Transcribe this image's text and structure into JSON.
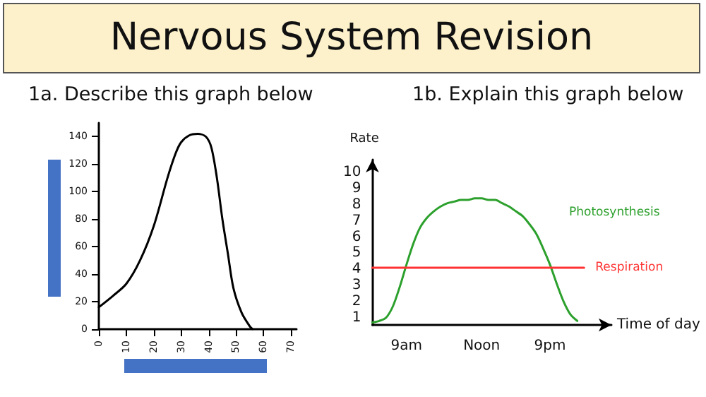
{
  "chart_data": [
    {
      "type": "line",
      "title": "Nervous System Revision",
      "subtitle": "1a. Describe this graph below",
      "x": [
        0,
        5,
        10,
        15,
        20,
        25,
        28,
        30,
        33,
        36,
        39,
        41,
        43,
        45,
        47,
        49,
        52,
        55,
        56
      ],
      "series": [
        {
          "color": "#000000",
          "values": [
            16,
            24,
            33,
            50,
            75,
            110,
            128,
            136,
            141,
            142,
            140,
            132,
            110,
            80,
            55,
            30,
            12,
            2,
            0
          ]
        }
      ],
      "xlim": [
        0,
        72
      ],
      "xticks": [
        0,
        10,
        20,
        30,
        40,
        50,
        60,
        70
      ],
      "ylim": [
        0,
        150
      ],
      "yticks": [
        0,
        20,
        40,
        60,
        80,
        100,
        120,
        140
      ],
      "grid": false,
      "legend": false,
      "marker": "none",
      "line_style": "solid"
    },
    {
      "type": "line",
      "subtitle": "1b. Explain this graph below",
      "xlabel": "Time of day",
      "ylabel": "Rate",
      "series": [
        {
          "name": "Photosynthesis",
          "color": "#2ca02c",
          "values": [
            0.7,
            0.8,
            1.0,
            1.7,
            2.9,
            4.3,
            5.6,
            6.6,
            7.2,
            7.6,
            7.9,
            8.1,
            8.2,
            8.3,
            8.3,
            8.4,
            8.4,
            8.3,
            8.3,
            8.1,
            7.9,
            7.6,
            7.3,
            6.8,
            6.2,
            5.3,
            4.3,
            3.1,
            2.0,
            1.2,
            0.8,
            null,
            null,
            null,
            null,
            null
          ]
        },
        {
          "name": "Respiration",
          "color": "#ff3333",
          "values": [
            4.1,
            4.1,
            4.1,
            4.1,
            4.1,
            4.1,
            4.1,
            4.1,
            4.1,
            4.1,
            4.1,
            4.1,
            4.1,
            4.1,
            4.1,
            4.1,
            4.1,
            4.1,
            4.1,
            4.1,
            4.1,
            4.1,
            4.1,
            4.1,
            4.1,
            4.1,
            4.1,
            4.1,
            4.1,
            4.1,
            4.1,
            4.1,
            null,
            null,
            null,
            null
          ]
        }
      ],
      "categories": [
        null,
        null,
        null,
        null,
        null,
        "9am",
        null,
        null,
        null,
        null,
        null,
        null,
        null,
        null,
        null,
        null,
        "Noon",
        null,
        null,
        null,
        null,
        null,
        null,
        null,
        null,
        null,
        "9pm",
        null,
        null,
        null,
        null,
        null,
        null,
        null,
        null,
        null
      ],
      "ylim": [
        0.55,
        10.8
      ],
      "yticks": [
        1,
        2,
        3,
        4,
        5,
        6,
        7,
        8,
        9,
        10
      ],
      "grid": false,
      "legend": false,
      "marker": "none",
      "line_style": "solid"
    }
  ]
}
